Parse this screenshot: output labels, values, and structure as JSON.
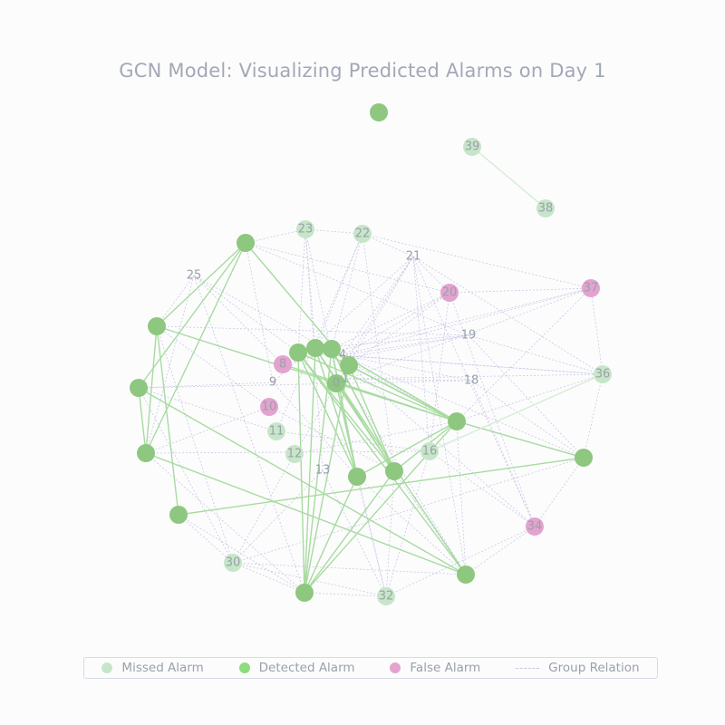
{
  "title": "GCN Model: Visualizing Predicted Alarms on Day 1",
  "legend": {
    "missed": "Missed Alarm",
    "detected": "Detected Alarm",
    "false": "False Alarm",
    "relation": "Group Relation"
  },
  "colors": {
    "missed": "#c7e6c9",
    "detected": "#8ec77f",
    "false": "#e3a3cf",
    "relation": "#c9c9e3",
    "detected_edge": "#a8dba0",
    "missed_edge": "#d5ecd2"
  },
  "nodes": [
    {
      "id": "0"
    },
    {
      "id": "1"
    },
    {
      "id": "2"
    },
    {
      "id": "3"
    },
    {
      "id": "4"
    },
    {
      "id": "5"
    },
    {
      "id": "6"
    },
    {
      "id": "7"
    },
    {
      "id": "8"
    },
    {
      "id": "9"
    },
    {
      "id": "10"
    },
    {
      "id": "11"
    },
    {
      "id": "12"
    },
    {
      "id": "13"
    },
    {
      "id": "14"
    },
    {
      "id": "15"
    },
    {
      "id": "16"
    },
    {
      "id": "17"
    },
    {
      "id": "18"
    },
    {
      "id": "19"
    },
    {
      "id": "20"
    },
    {
      "id": "21"
    },
    {
      "id": "22"
    },
    {
      "id": "23"
    },
    {
      "id": "24"
    },
    {
      "id": "25"
    },
    {
      "id": "26"
    },
    {
      "id": "27"
    },
    {
      "id": "28"
    },
    {
      "id": "29"
    },
    {
      "id": "30"
    },
    {
      "id": "31"
    },
    {
      "id": "32"
    },
    {
      "id": "33"
    },
    {
      "id": "34"
    },
    {
      "id": "35"
    },
    {
      "id": "36"
    },
    {
      "id": "37"
    },
    {
      "id": "38"
    },
    {
      "id": "39"
    },
    {
      "id": "40"
    }
  ]
}
